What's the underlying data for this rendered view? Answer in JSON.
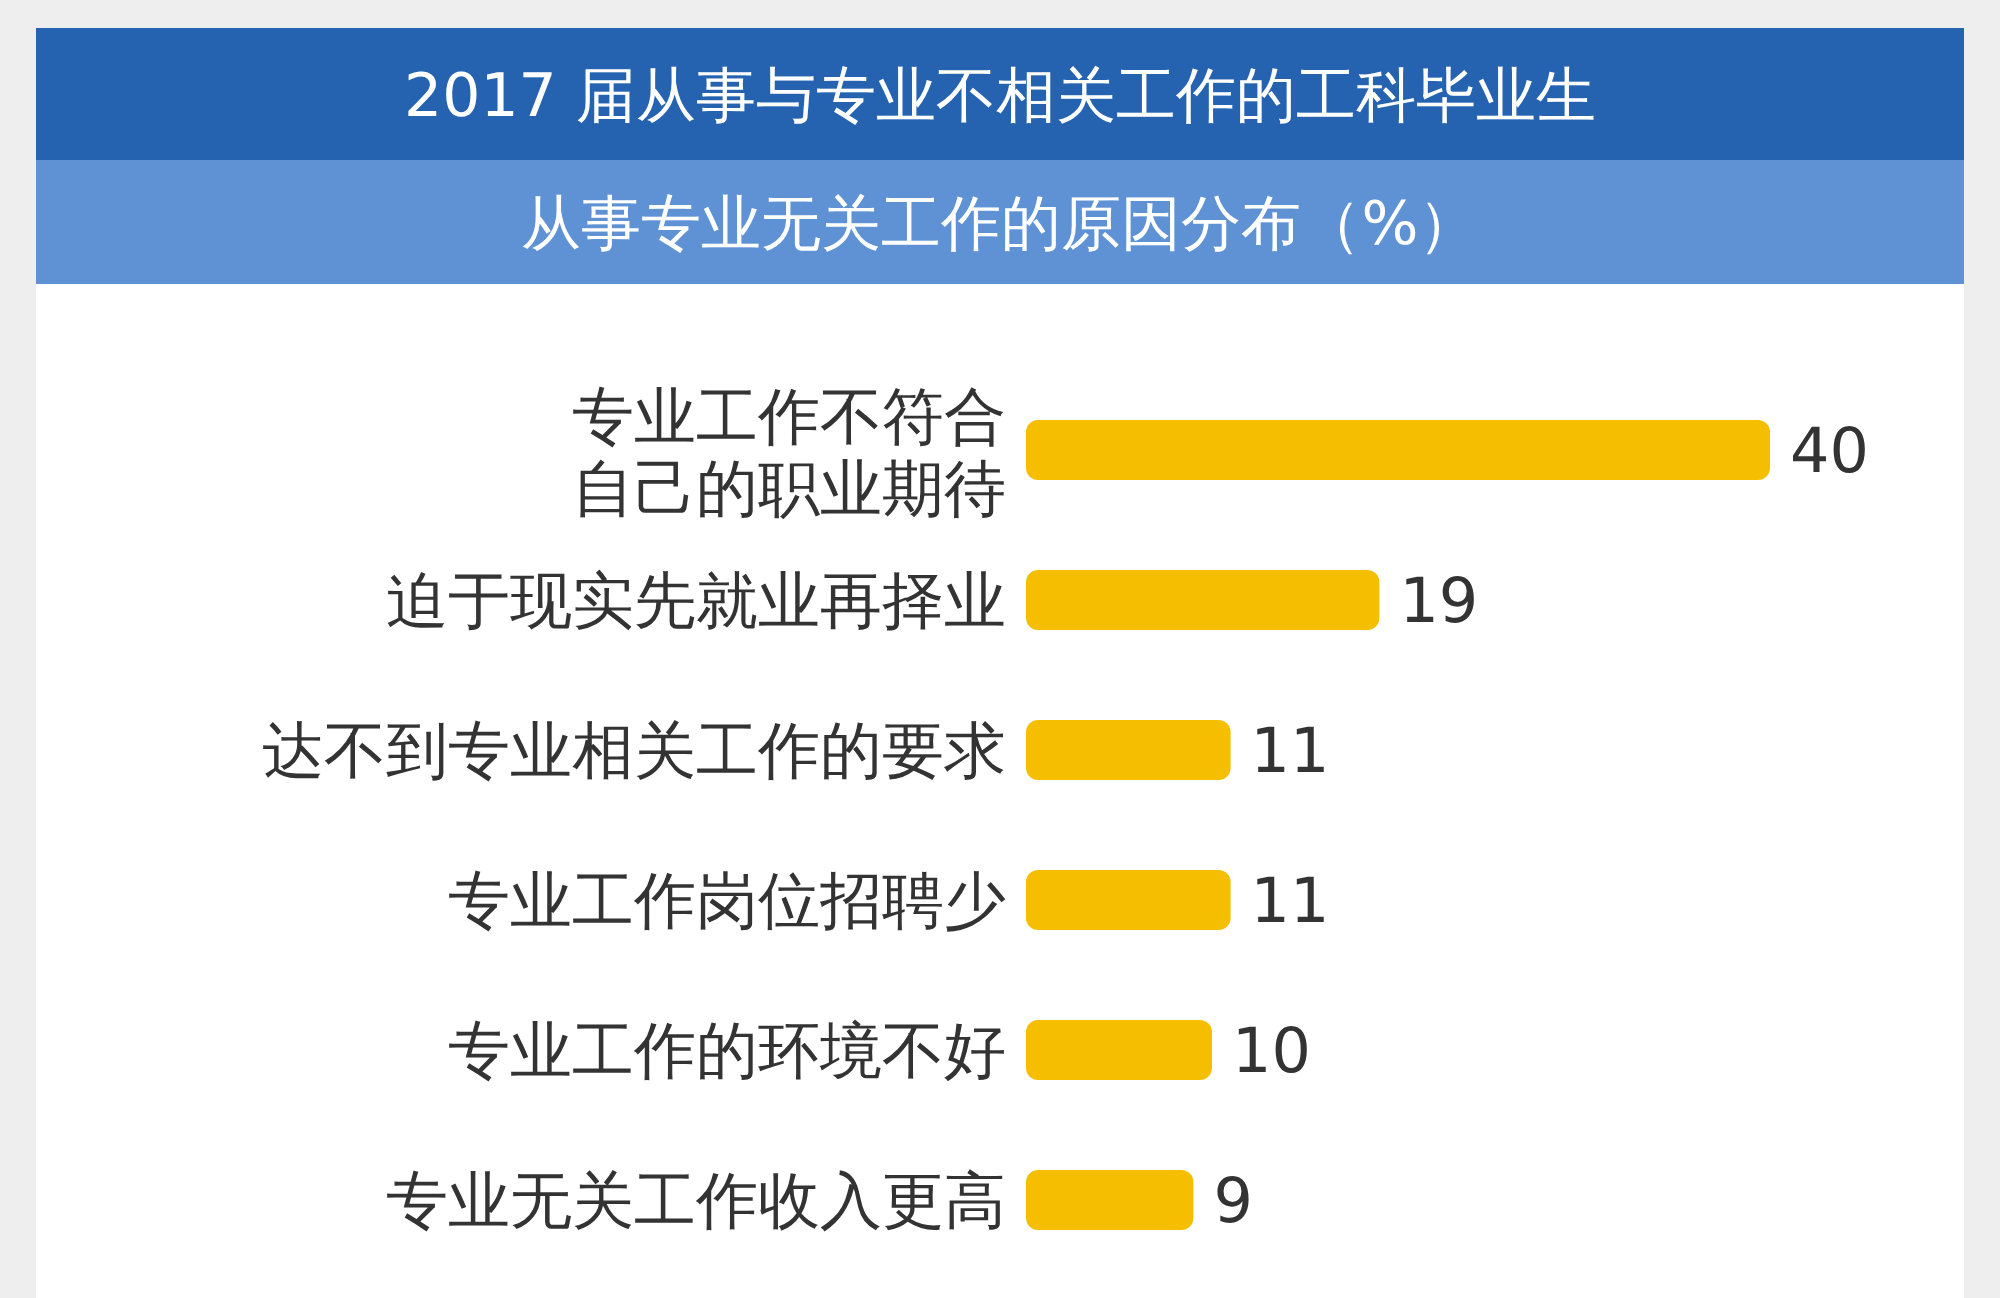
{
  "chart_data": {
    "type": "bar",
    "orientation": "horizontal",
    "title": "2017 届从事与专业不相关工作的工科毕业生",
    "subtitle": "从事专业无关工作的原因分布（%）",
    "categories": [
      "专业工作不符合自己的职业期待",
      "迫于现实先就业再择业",
      "达不到专业相关工作的要求",
      "专业工作岗位招聘少",
      "专业工作的环境不好",
      "专业无关工作收入更高"
    ],
    "values": [
      40,
      19,
      11,
      11,
      10,
      9
    ],
    "color": "#f5bf00",
    "data_labels": true
  }
}
